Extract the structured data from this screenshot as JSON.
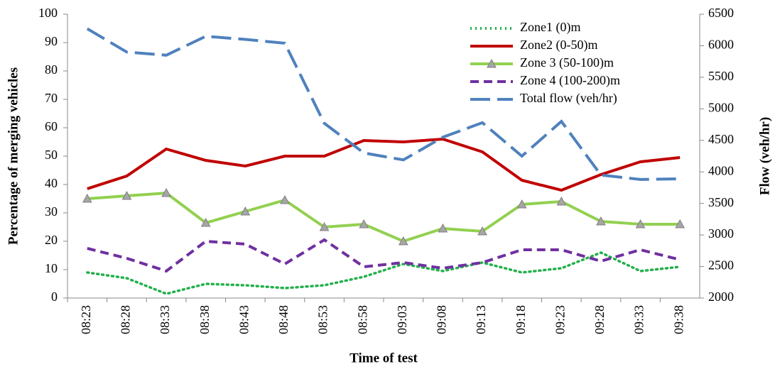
{
  "chart_data": {
    "type": "line",
    "x_label": "Time of test",
    "y_label": "Percentage of merging vehicles",
    "y2_label": "Flow (veh/hr)",
    "categories": [
      "08:23",
      "08:28",
      "08:33",
      "08:38",
      "08:43",
      "08:48",
      "08:53",
      "08:58",
      "09:03",
      "09:08",
      "09:13",
      "09:18",
      "09:23",
      "09:28",
      "09:33",
      "09:38"
    ],
    "ylim": [
      0,
      100
    ],
    "yticks": [
      0,
      10,
      20,
      30,
      40,
      50,
      60,
      70,
      80,
      90,
      100
    ],
    "y2lim": [
      2000,
      6500
    ],
    "y2ticks": [
      2000,
      2500,
      3000,
      3500,
      4000,
      4500,
      5000,
      5500,
      6000,
      6500
    ],
    "series": [
      {
        "name": "Zone1 (0)m",
        "color": "#22b04b",
        "dash": "dotted",
        "values": [
          9,
          7,
          1.5,
          5,
          4.5,
          3.5,
          4.5,
          7.5,
          12,
          9.5,
          12.5,
          9,
          10.5,
          16,
          9.5,
          11
        ]
      },
      {
        "name": "Zone2 (0-50)m",
        "color": "#c00000",
        "dash": "solid",
        "values": [
          38.5,
          43,
          52.5,
          48.5,
          46.5,
          50,
          50,
          55.5,
          55,
          56,
          51.5,
          41.5,
          38,
          43.5,
          48,
          49.5
        ]
      },
      {
        "name": "Zone 3 (50-100)m",
        "color": "#92d050",
        "dash": "solid",
        "marker": "triangle",
        "values": [
          35,
          36,
          37,
          26.5,
          30.5,
          34.5,
          25,
          26,
          20,
          24.5,
          23.5,
          33,
          34,
          27,
          26,
          26
        ]
      },
      {
        "name": "Zone 4 (100-200)m",
        "color": "#7030a0",
        "dash": "dashed",
        "values": [
          17.5,
          14,
          9.5,
          20,
          19,
          12,
          20.5,
          11,
          12.5,
          10.5,
          12.5,
          17,
          17,
          13,
          17,
          13.5
        ]
      },
      {
        "name": "Total flow (veh/hr)",
        "color": "#4f81bd",
        "dash": "longdash",
        "axis": "y2",
        "values": [
          6270,
          5900,
          5850,
          6150,
          6100,
          6040,
          4770,
          4300,
          4190,
          4550,
          4780,
          4250,
          4800,
          3950,
          3880,
          3890
        ]
      }
    ]
  }
}
